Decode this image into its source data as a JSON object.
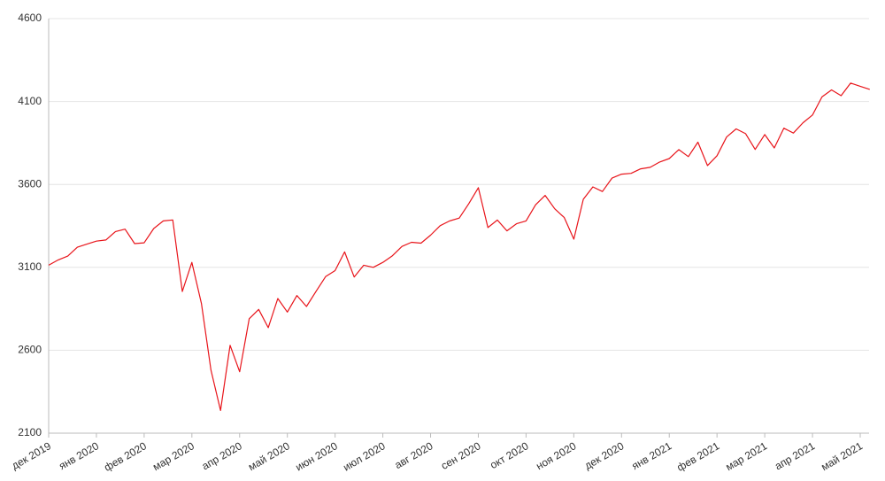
{
  "chart_data": {
    "type": "line",
    "categories": [
      "дек 2019",
      null,
      null,
      null,
      null,
      "янв 2020",
      null,
      null,
      null,
      null,
      "фев 2020",
      null,
      null,
      null,
      null,
      "мар 2020",
      null,
      null,
      null,
      null,
      "апр 2020",
      null,
      null,
      null,
      null,
      "май 2020",
      null,
      null,
      null,
      null,
      "июн 2020",
      null,
      null,
      null,
      null,
      "июл 2020",
      null,
      null,
      null,
      null,
      "авг 2020",
      null,
      null,
      null,
      null,
      "сен 2020",
      null,
      null,
      null,
      null,
      "окт 2020",
      null,
      null,
      null,
      null,
      "ноя 2020",
      null,
      null,
      null,
      null,
      "дек 2020",
      null,
      null,
      null,
      null,
      "янв 2021",
      null,
      null,
      null,
      null,
      "фев 2021",
      null,
      null,
      null,
      null,
      "мар 2021",
      null,
      null,
      null,
      null,
      "апр 2021",
      null,
      null,
      null,
      null,
      "май 2021",
      null
    ],
    "values": [
      3113,
      3145,
      3168,
      3221,
      3240,
      3258,
      3265,
      3316,
      3330,
      3243,
      3248,
      3334,
      3380,
      3386,
      2954,
      3130,
      2882,
      2480,
      2237,
      2630,
      2470,
      2790,
      2846,
      2736,
      2912,
      2830,
      2930,
      2864,
      2955,
      3044,
      3080,
      3193,
      3042,
      3113,
      3100,
      3130,
      3170,
      3226,
      3251,
      3246,
      3294,
      3351,
      3380,
      3397,
      3484,
      3580,
      3340,
      3385,
      3320,
      3363,
      3380,
      3477,
      3534,
      3453,
      3400,
      3270,
      3510,
      3585,
      3557,
      3638,
      3662,
      3667,
      3694,
      3703,
      3735,
      3756,
      3810,
      3768,
      3855,
      3714,
      3773,
      3886,
      3935,
      3906,
      3811,
      3901,
      3820,
      3939,
      3910,
      3972,
      4019,
      4128,
      4170,
      4135,
      4211,
      4192,
      4173
    ],
    "color": "#e8141a",
    "ylim": [
      2100,
      4600
    ],
    "yticks": [
      2100,
      2600,
      3100,
      3600,
      4100,
      4600
    ],
    "grid": true
  }
}
